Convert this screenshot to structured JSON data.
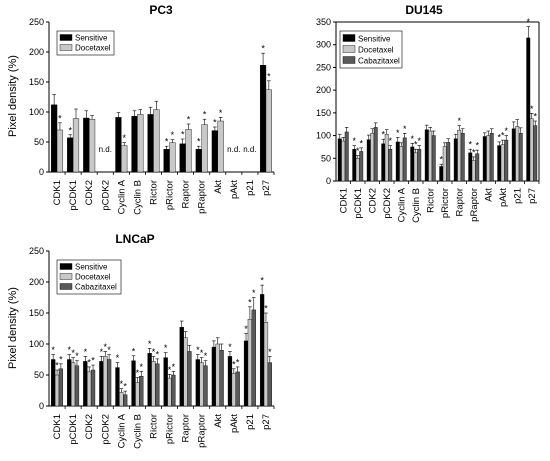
{
  "chart_data": [
    {
      "type": "bar",
      "title": "PC3",
      "xlabel": "",
      "ylabel": "Pixel density (%)",
      "ylim": [
        0,
        250
      ],
      "yticks": [
        0,
        50,
        100,
        150,
        200,
        250
      ],
      "categories": [
        "CDK1",
        "pCDK1",
        "CDK2",
        "pCDK2",
        "Cyclin A",
        "Cyclin B",
        "Rictor",
        "pRictor",
        "Raptor",
        "pRaptor",
        "Akt",
        "pAkt",
        "p21",
        "p27"
      ],
      "legend_position": "top-left",
      "series": [
        {
          "name": "Sensitive",
          "color": "#000000",
          "values": [
            112,
            57,
            90,
            null,
            91,
            93,
            96,
            38,
            47,
            38,
            69,
            null,
            null,
            178
          ],
          "errors": [
            17,
            5,
            12,
            null,
            8,
            9,
            12,
            5,
            8,
            5,
            6,
            null,
            null,
            20
          ],
          "stars": [
            false,
            true,
            false,
            false,
            false,
            false,
            false,
            true,
            true,
            true,
            true,
            false,
            false,
            true
          ]
        },
        {
          "name": "Docetaxel",
          "color": "#c8c8c8",
          "values": [
            70,
            89,
            88,
            null,
            44,
            96,
            104,
            49,
            71,
            79,
            85,
            null,
            null,
            137
          ],
          "errors": [
            12,
            16,
            6,
            null,
            5,
            8,
            14,
            5,
            9,
            9,
            6,
            null,
            null,
            15
          ],
          "stars": [
            true,
            false,
            false,
            false,
            true,
            false,
            false,
            true,
            true,
            true,
            true,
            false,
            false,
            true
          ]
        }
      ],
      "annotations": {
        "nd_label": "n.d.",
        "nd_categories": [
          "pCDK2",
          "pAkt",
          "p21"
        ]
      }
    },
    {
      "type": "bar",
      "title": "DU145",
      "xlabel": "",
      "ylabel": "",
      "ylim": [
        0,
        350
      ],
      "yticks": [
        0,
        50,
        100,
        150,
        200,
        250,
        300,
        350
      ],
      "categories": [
        "CDK1",
        "pCDK1",
        "CDK2",
        "pCDK2",
        "Cyclin A",
        "Cyclin B",
        "Rictor",
        "pRictor",
        "Raptor",
        "pRaptor",
        "Akt",
        "pAkt",
        "p21",
        "p27"
      ],
      "legend_position": "top-left",
      "series": [
        {
          "name": "Sensitive",
          "color": "#000000",
          "values": [
            93,
            70,
            91,
            82,
            86,
            75,
            113,
            32,
            93,
            62,
            98,
            78,
            115,
            315
          ],
          "errors": [
            10,
            8,
            10,
            10,
            10,
            8,
            10,
            5,
            10,
            8,
            8,
            8,
            15,
            25
          ],
          "stars": [
            false,
            true,
            false,
            true,
            true,
            true,
            false,
            true,
            false,
            true,
            false,
            true,
            false,
            true
          ]
        },
        {
          "name": "Docetaxel",
          "color": "#c8c8c8",
          "values": [
            88,
            50,
            105,
            103,
            76,
            62,
            110,
            76,
            112,
            45,
            100,
            80,
            120,
            137
          ],
          "errors": [
            8,
            6,
            10,
            10,
            8,
            8,
            8,
            8,
            10,
            8,
            10,
            10,
            15,
            12
          ],
          "stars": [
            false,
            true,
            false,
            false,
            false,
            true,
            false,
            false,
            true,
            true,
            false,
            true,
            false,
            true
          ]
        },
        {
          "name": "Cabazitaxel",
          "color": "#5a5a5a",
          "values": [
            108,
            65,
            118,
            70,
            95,
            70,
            100,
            85,
            105,
            60,
            105,
            90,
            105,
            122
          ],
          "errors": [
            10,
            8,
            10,
            8,
            10,
            8,
            10,
            8,
            10,
            8,
            10,
            10,
            12,
            10
          ],
          "stars": [
            false,
            true,
            false,
            true,
            true,
            true,
            false,
            false,
            false,
            true,
            false,
            true,
            false,
            true
          ]
        }
      ]
    },
    {
      "type": "bar",
      "title": "LNCaP",
      "xlabel": "",
      "ylabel": "Pixel density (%)",
      "ylim": [
        0,
        250
      ],
      "yticks": [
        0,
        50,
        100,
        150,
        200,
        250
      ],
      "categories": [
        "CDK1",
        "pCDK1",
        "CDK2",
        "pCDK2",
        "Cyclin A",
        "Cyclin B",
        "Rictor",
        "pRictor",
        "Raptor",
        "pRaptor",
        "Akt",
        "pAkt",
        "p21",
        "p27"
      ],
      "legend_position": "top-left",
      "series": [
        {
          "name": "Sensitive",
          "color": "#000000",
          "values": [
            75,
            75,
            72,
            72,
            62,
            73,
            85,
            78,
            127,
            75,
            95,
            80,
            105,
            180
          ],
          "errors": [
            8,
            8,
            8,
            8,
            8,
            8,
            8,
            8,
            10,
            8,
            10,
            8,
            12,
            15
          ],
          "stars": [
            true,
            true,
            true,
            true,
            true,
            true,
            true,
            true,
            false,
            true,
            false,
            true,
            true,
            true
          ]
        },
        {
          "name": "Docetaxel",
          "color": "#c8c8c8",
          "values": [
            50,
            70,
            55,
            80,
            22,
            38,
            72,
            45,
            110,
            70,
            100,
            52,
            140,
            135
          ],
          "errors": [
            8,
            8,
            8,
            8,
            6,
            8,
            8,
            6,
            10,
            8,
            10,
            8,
            20,
            15
          ],
          "stars": [
            true,
            true,
            true,
            true,
            true,
            true,
            true,
            true,
            false,
            true,
            false,
            true,
            true,
            true
          ]
        },
        {
          "name": "Cabazitaxel",
          "color": "#5a5a5a",
          "values": [
            60,
            65,
            58,
            75,
            18,
            48,
            68,
            50,
            88,
            65,
            90,
            55,
            155,
            70
          ],
          "errors": [
            8,
            8,
            8,
            8,
            6,
            8,
            8,
            6,
            10,
            8,
            10,
            8,
            20,
            10
          ],
          "stars": [
            true,
            true,
            true,
            true,
            true,
            true,
            true,
            true,
            false,
            true,
            false,
            true,
            true,
            true
          ]
        }
      ]
    }
  ]
}
